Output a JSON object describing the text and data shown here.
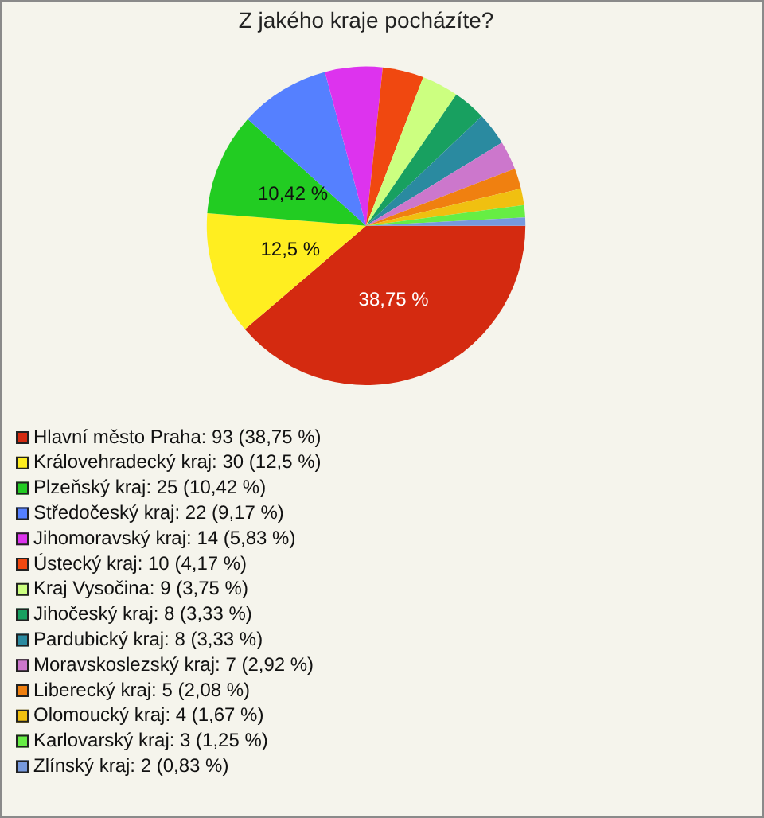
{
  "chart_data": {
    "type": "pie",
    "title": "Z jakého kraje pocházíte?",
    "categories": [
      "Hlavní město Praha: 93 (38,75 %)",
      "Královehradecký kraj: 30 (12,5 %)",
      "Plzeňský kraj: 25 (10,42 %)",
      "Středočeský kraj: 22 (9,17 %)",
      "Jihomoravský kraj: 14 (5,83 %)",
      "Ústecký kraj: 10 (4,17 %)",
      "Kraj Vysočina: 9 (3,75 %)",
      "Jihočeský kraj: 8 (3,33 %)",
      "Pardubický kraj: 8 (3,33 %)",
      "Moravskoslezský kraj: 7 (2,92 %)",
      "Liberecký kraj: 5 (2,08 %)",
      "Olomoucký kraj: 4 (1,67 %)",
      "Karlovarský kraj: 3 (1,25 %)",
      "Zlínský kraj: 2 (0,83 %)"
    ],
    "values": [
      38.75,
      12.5,
      10.42,
      9.17,
      5.83,
      4.17,
      3.75,
      3.33,
      3.33,
      2.92,
      2.08,
      1.67,
      1.25,
      0.83
    ],
    "colors": [
      "#d42a10",
      "#ffee20",
      "#22cc22",
      "#5580ff",
      "#dd33ee",
      "#f04810",
      "#ccff80",
      "#18a060",
      "#2a8aa0",
      "#cc77cc",
      "#f08010",
      "#f0c010",
      "#66ee44",
      "#7799dd"
    ],
    "value_labels": [
      "38,75 %",
      "12,5 %",
      "10,42 %",
      null,
      null,
      null,
      null,
      null,
      null,
      null,
      null,
      null,
      null,
      null
    ],
    "legend": "bottom left"
  }
}
